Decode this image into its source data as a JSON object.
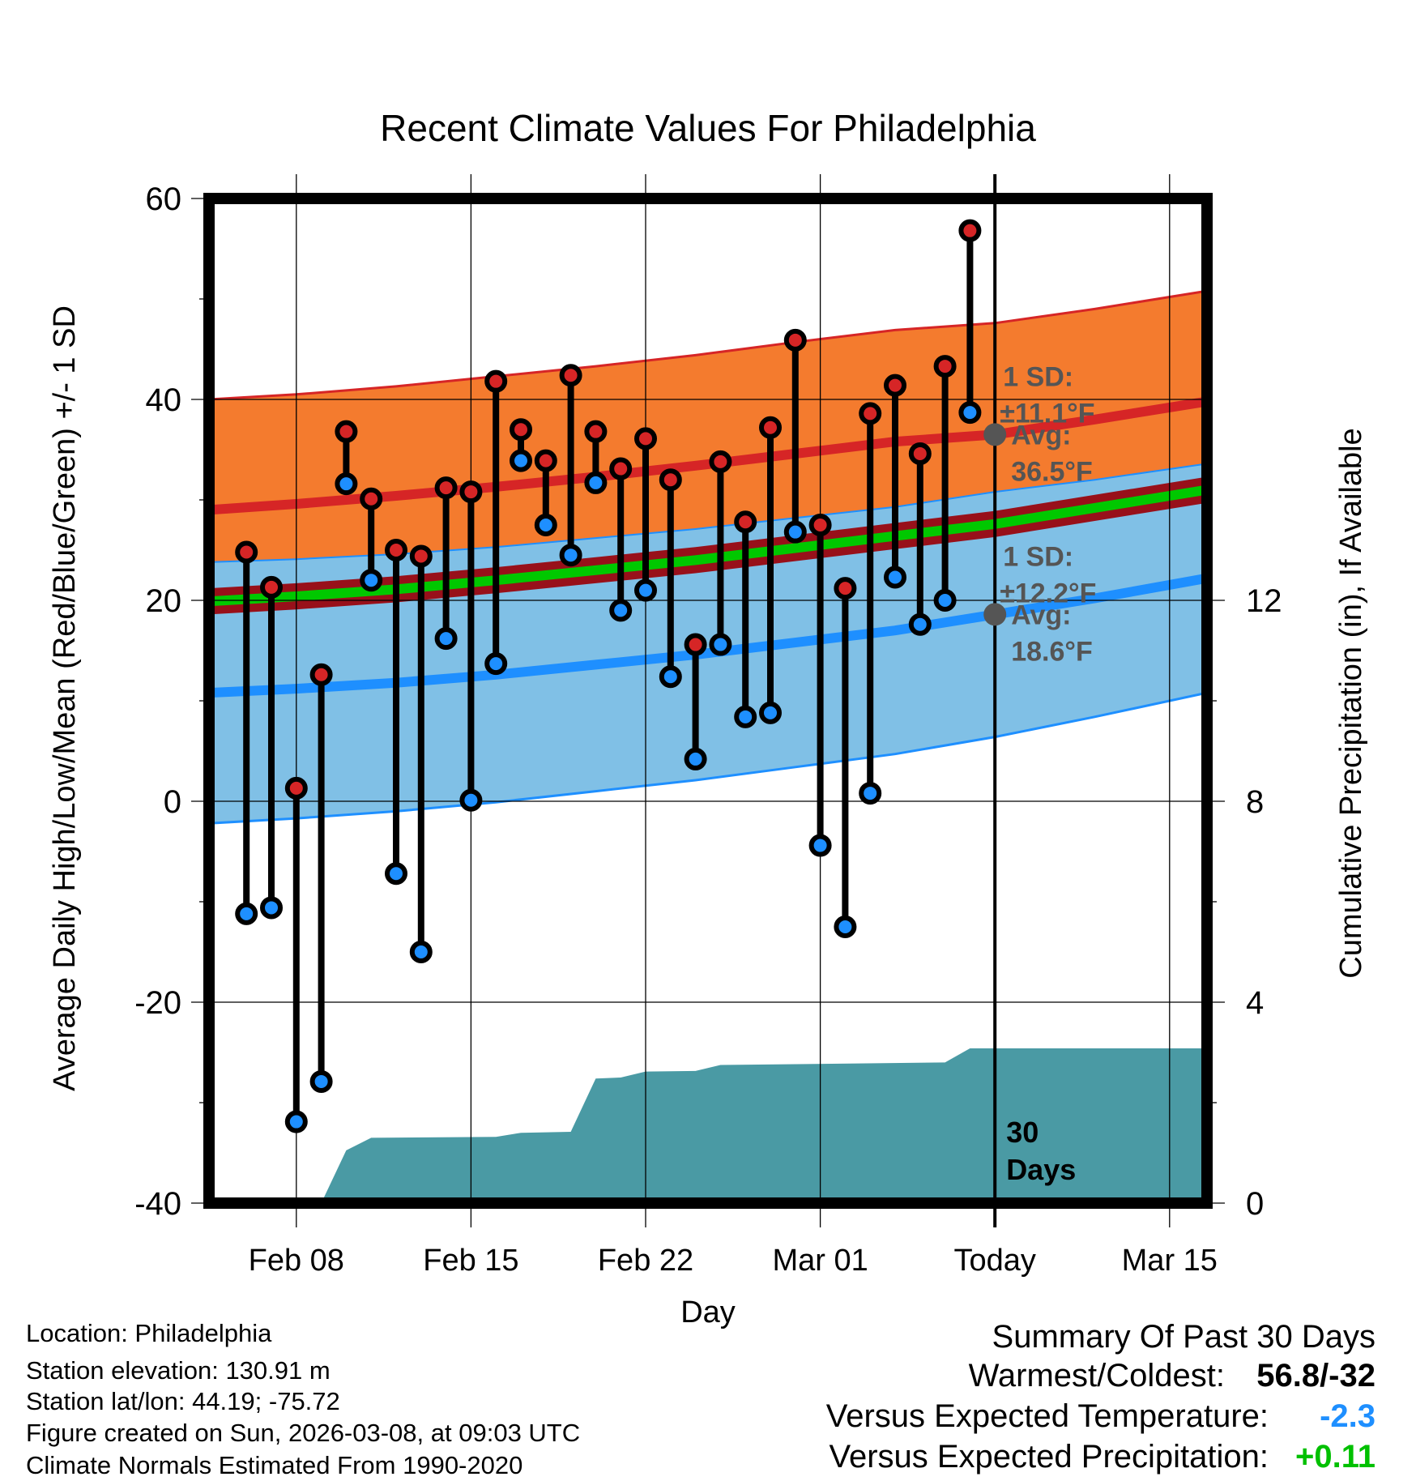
{
  "chart_data": {
    "type": "line",
    "title": "Recent Climate Values For Philadelphia",
    "xlabel": "Day",
    "ylabel": "Average Daily High/Low/Mean (Red/Blue/Green) +/- 1 SD",
    "y2label": "Cumulative Precipitation (in), If Available",
    "ylim": [
      -40,
      60
    ],
    "y2lim": [
      0,
      20
    ],
    "yticks": [
      "60",
      "40",
      "20",
      "0",
      "-20",
      "-40"
    ],
    "y2ticks": [
      "0",
      "4",
      "8",
      "12"
    ],
    "xlim": [
      4.5,
      44.5
    ],
    "x_tick_labels": [
      {
        "day": 8,
        "label": "Feb 08"
      },
      {
        "day": 15,
        "label": "Feb 15"
      },
      {
        "day": 22,
        "label": "Feb 22"
      },
      {
        "day": 29,
        "label": "Mar 01"
      },
      {
        "day": 36,
        "label": "Today"
      },
      {
        "day": 43,
        "label": "Mar 15"
      }
    ],
    "today_day": 36,
    "period_label_line1": "30",
    "period_label_line2": "Days",
    "daily": [
      {
        "day": 6,
        "high": 24.8,
        "low": -11.2
      },
      {
        "day": 7,
        "high": 21.3,
        "low": -10.6
      },
      {
        "day": 8,
        "high": 1.3,
        "low": -31.9
      },
      {
        "day": 9,
        "high": 12.6,
        "low": -27.9
      },
      {
        "day": 10,
        "high": 36.8,
        "low": 31.6
      },
      {
        "day": 11,
        "high": 30.1,
        "low": 22.0
      },
      {
        "day": 12,
        "high": 25.0,
        "low": -7.2
      },
      {
        "day": 13,
        "high": 24.4,
        "low": -15.0
      },
      {
        "day": 14,
        "high": 31.2,
        "low": 16.2
      },
      {
        "day": 15,
        "high": 30.8,
        "low": 0.1
      },
      {
        "day": 16,
        "high": 41.8,
        "low": 13.7
      },
      {
        "day": 17,
        "high": 37.0,
        "low": 33.9
      },
      {
        "day": 18,
        "high": 33.9,
        "low": 27.5
      },
      {
        "day": 19,
        "high": 42.4,
        "low": 24.5
      },
      {
        "day": 20,
        "high": 36.8,
        "low": 31.7
      },
      {
        "day": 21,
        "high": 33.1,
        "low": 19.0
      },
      {
        "day": 22,
        "high": 36.1,
        "low": 21.0
      },
      {
        "day": 23,
        "high": 32.0,
        "low": 12.4
      },
      {
        "day": 24,
        "high": 15.6,
        "low": 4.2
      },
      {
        "day": 25,
        "high": 33.8,
        "low": 15.6
      },
      {
        "day": 26,
        "high": 27.8,
        "low": 8.4
      },
      {
        "day": 27,
        "high": 37.2,
        "low": 8.8
      },
      {
        "day": 28,
        "high": 45.9,
        "low": 26.8
      },
      {
        "day": 29,
        "high": 27.5,
        "low": -4.4
      },
      {
        "day": 30,
        "high": 21.2,
        "low": -12.5
      },
      {
        "day": 31,
        "high": 38.6,
        "low": 0.8
      },
      {
        "day": 32,
        "high": 41.4,
        "low": 22.3
      },
      {
        "day": 33,
        "high": 34.6,
        "low": 17.6
      },
      {
        "day": 34,
        "high": 43.3,
        "low": 20.0
      },
      {
        "day": 35,
        "high": 56.8,
        "low": 38.7
      }
    ],
    "normals": {
      "days": [
        4.5,
        8,
        12,
        16,
        20,
        24,
        28,
        32,
        36,
        40,
        44.5
      ],
      "high_mean": [
        29.0,
        29.6,
        30.4,
        31.3,
        32.3,
        33.4,
        34.6,
        35.8,
        36.5,
        38.0,
        39.8
      ],
      "high_sd": [
        11.0,
        10.9,
        10.9,
        11.0,
        11.0,
        11.0,
        11.1,
        11.1,
        11.1,
        11.0,
        11.0
      ],
      "low_mean": [
        10.8,
        11.2,
        11.8,
        12.6,
        13.6,
        14.6,
        15.8,
        17.0,
        18.6,
        20.2,
        22.2
      ],
      "low_sd": [
        13.0,
        12.9,
        12.8,
        12.7,
        12.6,
        12.5,
        12.4,
        12.3,
        12.2,
        11.8,
        11.4
      ],
      "mean_mean": [
        19.9,
        20.4,
        21.1,
        22.0,
        23.0,
        24.0,
        25.2,
        26.4,
        27.6,
        29.2,
        31.0
      ],
      "mean_sd": [
        1.3,
        1.3,
        1.3,
        1.3,
        1.3,
        1.3,
        1.3,
        1.3,
        1.3,
        1.3,
        1.3
      ]
    },
    "precip_cumulative": [
      {
        "day": 5.8,
        "value": 0
      },
      {
        "day": 9.0,
        "value": 0
      },
      {
        "day": 10.0,
        "value": 1.05
      },
      {
        "day": 11.0,
        "value": 1.3
      },
      {
        "day": 16.0,
        "value": 1.32
      },
      {
        "day": 17.0,
        "value": 1.4
      },
      {
        "day": 19.0,
        "value": 1.42
      },
      {
        "day": 20.0,
        "value": 2.48
      },
      {
        "day": 21.0,
        "value": 2.5
      },
      {
        "day": 22.0,
        "value": 2.62
      },
      {
        "day": 24.0,
        "value": 2.63
      },
      {
        "day": 25.0,
        "value": 2.75
      },
      {
        "day": 34.0,
        "value": 2.8
      },
      {
        "day": 35.0,
        "value": 3.08
      },
      {
        "day": 44.5,
        "value": 3.08
      }
    ],
    "high_annotation": {
      "line1": "1 SD:",
      "line2": "±11.1°F",
      "line3": "Avg:",
      "line4": "36.5°F",
      "value": 36.5
    },
    "low_annotation": {
      "line1": "1 SD:",
      "line2": "±12.2°F",
      "line3": "Avg:",
      "line4": "18.6°F",
      "value": 18.6
    },
    "colors": {
      "high_band": "#f47b2e",
      "high_line": "#d62526",
      "mean_band": "#98101a",
      "mean_line": "#00c800",
      "low_band": "#80c0e6",
      "low_line": "#1e8fff",
      "precip": "#4a9aa4",
      "annotation": "#555555",
      "frame": "#000000"
    }
  },
  "footer": {
    "location": "Location: Philadelphia",
    "elevation": "Station elevation: 130.91 m",
    "latlon": "Station lat/lon: 44.19; -75.72",
    "created": "Figure created on Sun, 2026-03-08, at 09:03 UTC",
    "normals": "Climate Normals Estimated From 1990-2020"
  },
  "summary": {
    "title": "Summary Of Past 30 Days",
    "warm_label": "Warmest/Coldest:",
    "warm_value": "56.8/-32",
    "temp_label": "Versus Expected Temperature:",
    "temp_value": "-2.3",
    "temp_color": "#1e8fff",
    "precip_label": "Versus Expected Precipitation:",
    "precip_value": "+0.11",
    "precip_color": "#00c000"
  }
}
